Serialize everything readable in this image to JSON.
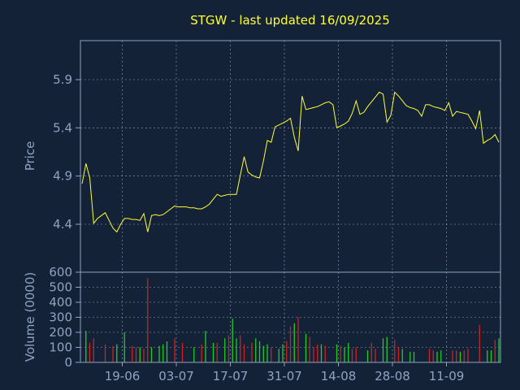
{
  "chart_title": "STGW - last updated 16/09/2025",
  "colors": {
    "background": "#142237",
    "frame": "#8ea4c2",
    "grid": "#8ea4c2",
    "axis_text": "#8ea4c2",
    "title": "#ffff33",
    "price_line": "#ffff33",
    "volume_up": "#22cc22",
    "volume_down": "#cc2222"
  },
  "chart_data": [
    {
      "type": "line",
      "ylabel": "Price",
      "ylim": [
        4.25,
        5.5
      ],
      "y_ticks": [
        "4.4",
        "4.9",
        "5.4",
        "5.9"
      ],
      "grid": true,
      "series": [
        {
          "values": [
            4.82,
            5.03,
            4.88,
            4.41,
            4.46,
            4.49,
            4.52,
            4.44,
            4.36,
            4.32,
            4.4,
            4.46,
            4.46,
            4.45,
            4.45,
            4.44,
            4.51,
            4.32,
            4.49,
            4.5,
            4.49,
            4.5,
            4.53,
            4.56,
            4.59,
            4.58,
            4.58,
            4.58,
            4.57,
            4.57,
            4.56,
            4.56,
            4.58,
            4.61,
            4.66,
            4.71,
            4.69,
            4.7,
            4.71,
            4.71,
            4.71,
            4.91,
            5.1,
            4.94,
            4.91,
            4.89,
            4.88,
            5.06,
            5.27,
            5.25,
            5.41,
            5.43,
            5.45,
            5.47,
            5.5,
            5.3,
            5.16,
            5.73,
            5.59,
            5.6,
            5.61,
            5.62,
            5.64,
            5.66,
            5.67,
            5.64,
            5.4,
            5.42,
            5.44,
            5.47,
            5.55,
            5.68,
            5.54,
            5.56,
            5.62,
            5.67,
            5.72,
            5.77,
            5.75,
            5.46,
            5.53,
            5.77,
            5.73,
            5.68,
            5.63,
            5.61,
            5.6,
            5.58,
            5.52,
            5.64,
            5.64,
            5.62,
            5.61,
            5.6,
            5.58,
            5.66,
            5.52,
            5.57,
            5.56,
            5.55,
            5.54,
            5.47,
            5.39,
            5.58,
            5.24,
            5.27,
            5.29,
            5.33,
            5.25
          ]
        }
      ]
    },
    {
      "type": "bar",
      "ylabel": "Volume (0000)",
      "ylim": [
        0,
        600
      ],
      "y_ticks": [
        "0",
        "100",
        "200",
        "300",
        "400",
        "500",
        "600"
      ],
      "grid": true,
      "x_tick_labels": [
        "19-06",
        "03-07",
        "17-07",
        "31-07",
        "14-08",
        "28-08",
        "11-09"
      ],
      "bars": [
        {
          "i": 1,
          "value": 210,
          "dir": "up"
        },
        {
          "i": 2,
          "value": 130,
          "dir": "down"
        },
        {
          "i": 3,
          "value": 160,
          "dir": "down"
        },
        {
          "i": 6,
          "value": 120,
          "dir": "down"
        },
        {
          "i": 8,
          "value": 110,
          "dir": "down"
        },
        {
          "i": 9,
          "value": 120,
          "dir": "up"
        },
        {
          "i": 11,
          "value": 200,
          "dir": "up"
        },
        {
          "i": 13,
          "value": 110,
          "dir": "down"
        },
        {
          "i": 14,
          "value": 100,
          "dir": "down"
        },
        {
          "i": 15,
          "value": 100,
          "dir": "up"
        },
        {
          "i": 16,
          "value": 90,
          "dir": "down"
        },
        {
          "i": 17,
          "value": 560,
          "dir": "down"
        },
        {
          "i": 18,
          "value": 100,
          "dir": "up"
        },
        {
          "i": 20,
          "value": 110,
          "dir": "up"
        },
        {
          "i": 21,
          "value": 120,
          "dir": "up"
        },
        {
          "i": 22,
          "value": 140,
          "dir": "up"
        },
        {
          "i": 24,
          "value": 160,
          "dir": "down"
        },
        {
          "i": 26,
          "value": 130,
          "dir": "down"
        },
        {
          "i": 29,
          "value": 100,
          "dir": "up"
        },
        {
          "i": 31,
          "value": 120,
          "dir": "down"
        },
        {
          "i": 32,
          "value": 210,
          "dir": "up"
        },
        {
          "i": 34,
          "value": 130,
          "dir": "up"
        },
        {
          "i": 35,
          "value": 130,
          "dir": "down"
        },
        {
          "i": 37,
          "value": 160,
          "dir": "up"
        },
        {
          "i": 38,
          "value": 180,
          "dir": "down"
        },
        {
          "i": 39,
          "value": 290,
          "dir": "up"
        },
        {
          "i": 40,
          "value": 160,
          "dir": "up"
        },
        {
          "i": 41,
          "value": 180,
          "dir": "down"
        },
        {
          "i": 42,
          "value": 120,
          "dir": "down"
        },
        {
          "i": 44,
          "value": 130,
          "dir": "down"
        },
        {
          "i": 45,
          "value": 160,
          "dir": "up"
        },
        {
          "i": 46,
          "value": 140,
          "dir": "up"
        },
        {
          "i": 47,
          "value": 110,
          "dir": "up"
        },
        {
          "i": 48,
          "value": 120,
          "dir": "up"
        },
        {
          "i": 49,
          "value": 100,
          "dir": "down"
        },
        {
          "i": 51,
          "value": 90,
          "dir": "up"
        },
        {
          "i": 52,
          "value": 120,
          "dir": "up"
        },
        {
          "i": 53,
          "value": 140,
          "dir": "down"
        },
        {
          "i": 54,
          "value": 240,
          "dir": "down"
        },
        {
          "i": 55,
          "value": 260,
          "dir": "up"
        },
        {
          "i": 56,
          "value": 300,
          "dir": "red"
        },
        {
          "i": 58,
          "value": 190,
          "dir": "up"
        },
        {
          "i": 59,
          "value": 170,
          "dir": "down"
        },
        {
          "i": 60,
          "value": 100,
          "dir": "down"
        },
        {
          "i": 61,
          "value": 120,
          "dir": "down"
        },
        {
          "i": 62,
          "value": 120,
          "dir": "up"
        },
        {
          "i": 63,
          "value": 110,
          "dir": "down"
        },
        {
          "i": 66,
          "value": 120,
          "dir": "up"
        },
        {
          "i": 67,
          "value": 110,
          "dir": "down"
        },
        {
          "i": 68,
          "value": 100,
          "dir": "up"
        },
        {
          "i": 69,
          "value": 130,
          "dir": "up"
        },
        {
          "i": 70,
          "value": 90,
          "dir": "down"
        },
        {
          "i": 71,
          "value": 100,
          "dir": "down"
        },
        {
          "i": 74,
          "value": 80,
          "dir": "up"
        },
        {
          "i": 75,
          "value": 130,
          "dir": "down"
        },
        {
          "i": 76,
          "value": 90,
          "dir": "down"
        },
        {
          "i": 78,
          "value": 160,
          "dir": "up"
        },
        {
          "i": 79,
          "value": 170,
          "dir": "up"
        },
        {
          "i": 81,
          "value": 150,
          "dir": "down"
        },
        {
          "i": 82,
          "value": 100,
          "dir": "down"
        },
        {
          "i": 83,
          "value": 90,
          "dir": "up"
        },
        {
          "i": 85,
          "value": 70,
          "dir": "up"
        },
        {
          "i": 86,
          "value": 70,
          "dir": "up"
        },
        {
          "i": 90,
          "value": 90,
          "dir": "down"
        },
        {
          "i": 91,
          "value": 80,
          "dir": "down"
        },
        {
          "i": 92,
          "value": 70,
          "dir": "up"
        },
        {
          "i": 93,
          "value": 80,
          "dir": "up"
        },
        {
          "i": 96,
          "value": 80,
          "dir": "down"
        },
        {
          "i": 97,
          "value": 80,
          "dir": "down"
        },
        {
          "i": 98,
          "value": 70,
          "dir": "up"
        },
        {
          "i": 99,
          "value": 80,
          "dir": "down"
        },
        {
          "i": 100,
          "value": 90,
          "dir": "down"
        },
        {
          "i": 103,
          "value": 250,
          "dir": "down"
        },
        {
          "i": 105,
          "value": 80,
          "dir": "up"
        },
        {
          "i": 106,
          "value": 80,
          "dir": "up"
        },
        {
          "i": 107,
          "value": 150,
          "dir": "down"
        },
        {
          "i": 108,
          "value": 160,
          "dir": "up"
        }
      ]
    }
  ]
}
